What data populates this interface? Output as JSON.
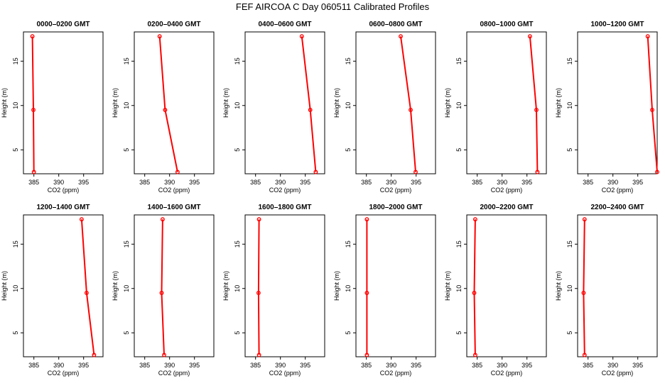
{
  "title": "FEF AIRCOA C  Day 060511  Calibrated Profiles",
  "chart_data": [
    {
      "type": "line",
      "title": "0000–0200 GMT",
      "xlabel": "CO2 (ppm)",
      "ylabel": "Height (m)",
      "x": [
        385.0,
        384.9,
        384.7
      ],
      "values": [
        2.5,
        9.5,
        17.8
      ],
      "color": "#ff0000",
      "xlim": [
        382.9,
        398.9
      ],
      "ylim": [
        2.3,
        18.3
      ],
      "xticks": [
        385,
        390,
        395
      ],
      "yticks": [
        5,
        10,
        15
      ]
    },
    {
      "type": "line",
      "title": "0200–0400 GMT",
      "xlabel": "CO2 (ppm)",
      "ylabel": "Height (m)",
      "x": [
        391.6,
        389.1,
        388.0
      ],
      "values": [
        2.5,
        9.5,
        17.8
      ],
      "color": "#ff0000",
      "xlim": [
        382.9,
        398.9
      ],
      "ylim": [
        2.3,
        18.3
      ],
      "xticks": [
        385,
        390,
        395
      ],
      "yticks": [
        5,
        10,
        15
      ]
    },
    {
      "type": "line",
      "title": "0400–0600 GMT",
      "xlabel": "CO2 (ppm)",
      "ylabel": "Height (m)",
      "x": [
        397.1,
        396.0,
        394.3
      ],
      "values": [
        2.5,
        9.5,
        17.8
      ],
      "color": "#ff0000",
      "xlim": [
        382.9,
        398.9
      ],
      "ylim": [
        2.3,
        18.3
      ],
      "xticks": [
        385,
        390,
        395
      ],
      "yticks": [
        5,
        10,
        15
      ]
    },
    {
      "type": "line",
      "title": "0600–0800 GMT",
      "xlabel": "CO2 (ppm)",
      "ylabel": "Height (m)",
      "x": [
        394.9,
        393.9,
        391.9
      ],
      "values": [
        2.5,
        9.5,
        17.8
      ],
      "color": "#ff0000",
      "xlim": [
        382.9,
        398.9
      ],
      "ylim": [
        2.3,
        18.3
      ],
      "xticks": [
        385,
        390,
        395
      ],
      "yticks": [
        5,
        10,
        15
      ]
    },
    {
      "type": "line",
      "title": "0800–1000 GMT",
      "xlabel": "CO2 (ppm)",
      "ylabel": "Height (m)",
      "x": [
        397.1,
        396.9,
        395.6
      ],
      "values": [
        2.5,
        9.5,
        17.8
      ],
      "color": "#ff0000",
      "xlim": [
        382.9,
        398.9
      ],
      "ylim": [
        2.3,
        18.3
      ],
      "xticks": [
        385,
        390,
        395
      ],
      "yticks": [
        5,
        10,
        15
      ]
    },
    {
      "type": "line",
      "title": "1000–1200 GMT",
      "xlabel": "CO2 (ppm)",
      "ylabel": "Height (m)",
      "x": [
        398.9,
        397.9,
        397.0
      ],
      "values": [
        2.5,
        9.5,
        17.8
      ],
      "color": "#ff0000",
      "xlim": [
        382.9,
        398.9
      ],
      "ylim": [
        2.3,
        18.3
      ],
      "xticks": [
        385,
        390,
        395
      ],
      "yticks": [
        5,
        10,
        15
      ]
    },
    {
      "type": "line",
      "title": "1200–1400 GMT",
      "xlabel": "CO2 (ppm)",
      "ylabel": "Height (m)",
      "x": [
        397.1,
        395.6,
        394.6
      ],
      "values": [
        2.5,
        9.5,
        17.8
      ],
      "color": "#ff0000",
      "xlim": [
        382.9,
        398.9
      ],
      "ylim": [
        2.3,
        18.3
      ],
      "xticks": [
        385,
        390,
        395
      ],
      "yticks": [
        5,
        10,
        15
      ]
    },
    {
      "type": "line",
      "title": "1400–1600 GMT",
      "xlabel": "CO2 (ppm)",
      "ylabel": "Height (m)",
      "x": [
        388.9,
        388.4,
        388.6
      ],
      "values": [
        2.5,
        9.5,
        17.8
      ],
      "color": "#ff0000",
      "xlim": [
        382.9,
        398.9
      ],
      "ylim": [
        2.3,
        18.3
      ],
      "xticks": [
        385,
        390,
        395
      ],
      "yticks": [
        5,
        10,
        15
      ]
    },
    {
      "type": "line",
      "title": "1600–1800 GMT",
      "xlabel": "CO2 (ppm)",
      "ylabel": "Height (m)",
      "x": [
        385.7,
        385.6,
        385.7
      ],
      "values": [
        2.5,
        9.5,
        17.8
      ],
      "color": "#ff0000",
      "xlim": [
        382.9,
        398.9
      ],
      "ylim": [
        2.3,
        18.3
      ],
      "xticks": [
        385,
        390,
        395
      ],
      "yticks": [
        5,
        10,
        15
      ]
    },
    {
      "type": "line",
      "title": "1800–2000 GMT",
      "xlabel": "CO2 (ppm)",
      "ylabel": "Height (m)",
      "x": [
        385.1,
        385.1,
        385.1
      ],
      "values": [
        2.5,
        9.5,
        17.8
      ],
      "color": "#ff0000",
      "xlim": [
        382.9,
        398.9
      ],
      "ylim": [
        2.3,
        18.3
      ],
      "xticks": [
        385,
        390,
        395
      ],
      "yticks": [
        5,
        10,
        15
      ]
    },
    {
      "type": "line",
      "title": "2000–2200 GMT",
      "xlabel": "CO2 (ppm)",
      "ylabel": "Height (m)",
      "x": [
        384.6,
        384.4,
        384.6
      ],
      "values": [
        2.5,
        9.5,
        17.8
      ],
      "color": "#ff0000",
      "xlim": [
        382.9,
        398.9
      ],
      "ylim": [
        2.3,
        18.3
      ],
      "xticks": [
        385,
        390,
        395
      ],
      "yticks": [
        5,
        10,
        15
      ]
    },
    {
      "type": "line",
      "title": "2200–2400 GMT",
      "xlabel": "CO2 (ppm)",
      "ylabel": "Height (m)",
      "x": [
        384.3,
        384.1,
        384.3
      ],
      "values": [
        2.5,
        9.5,
        17.8
      ],
      "color": "#ff0000",
      "xlim": [
        382.9,
        398.9
      ],
      "ylim": [
        2.3,
        18.3
      ],
      "xticks": [
        385,
        390,
        395
      ],
      "yticks": [
        5,
        10,
        15
      ]
    }
  ]
}
